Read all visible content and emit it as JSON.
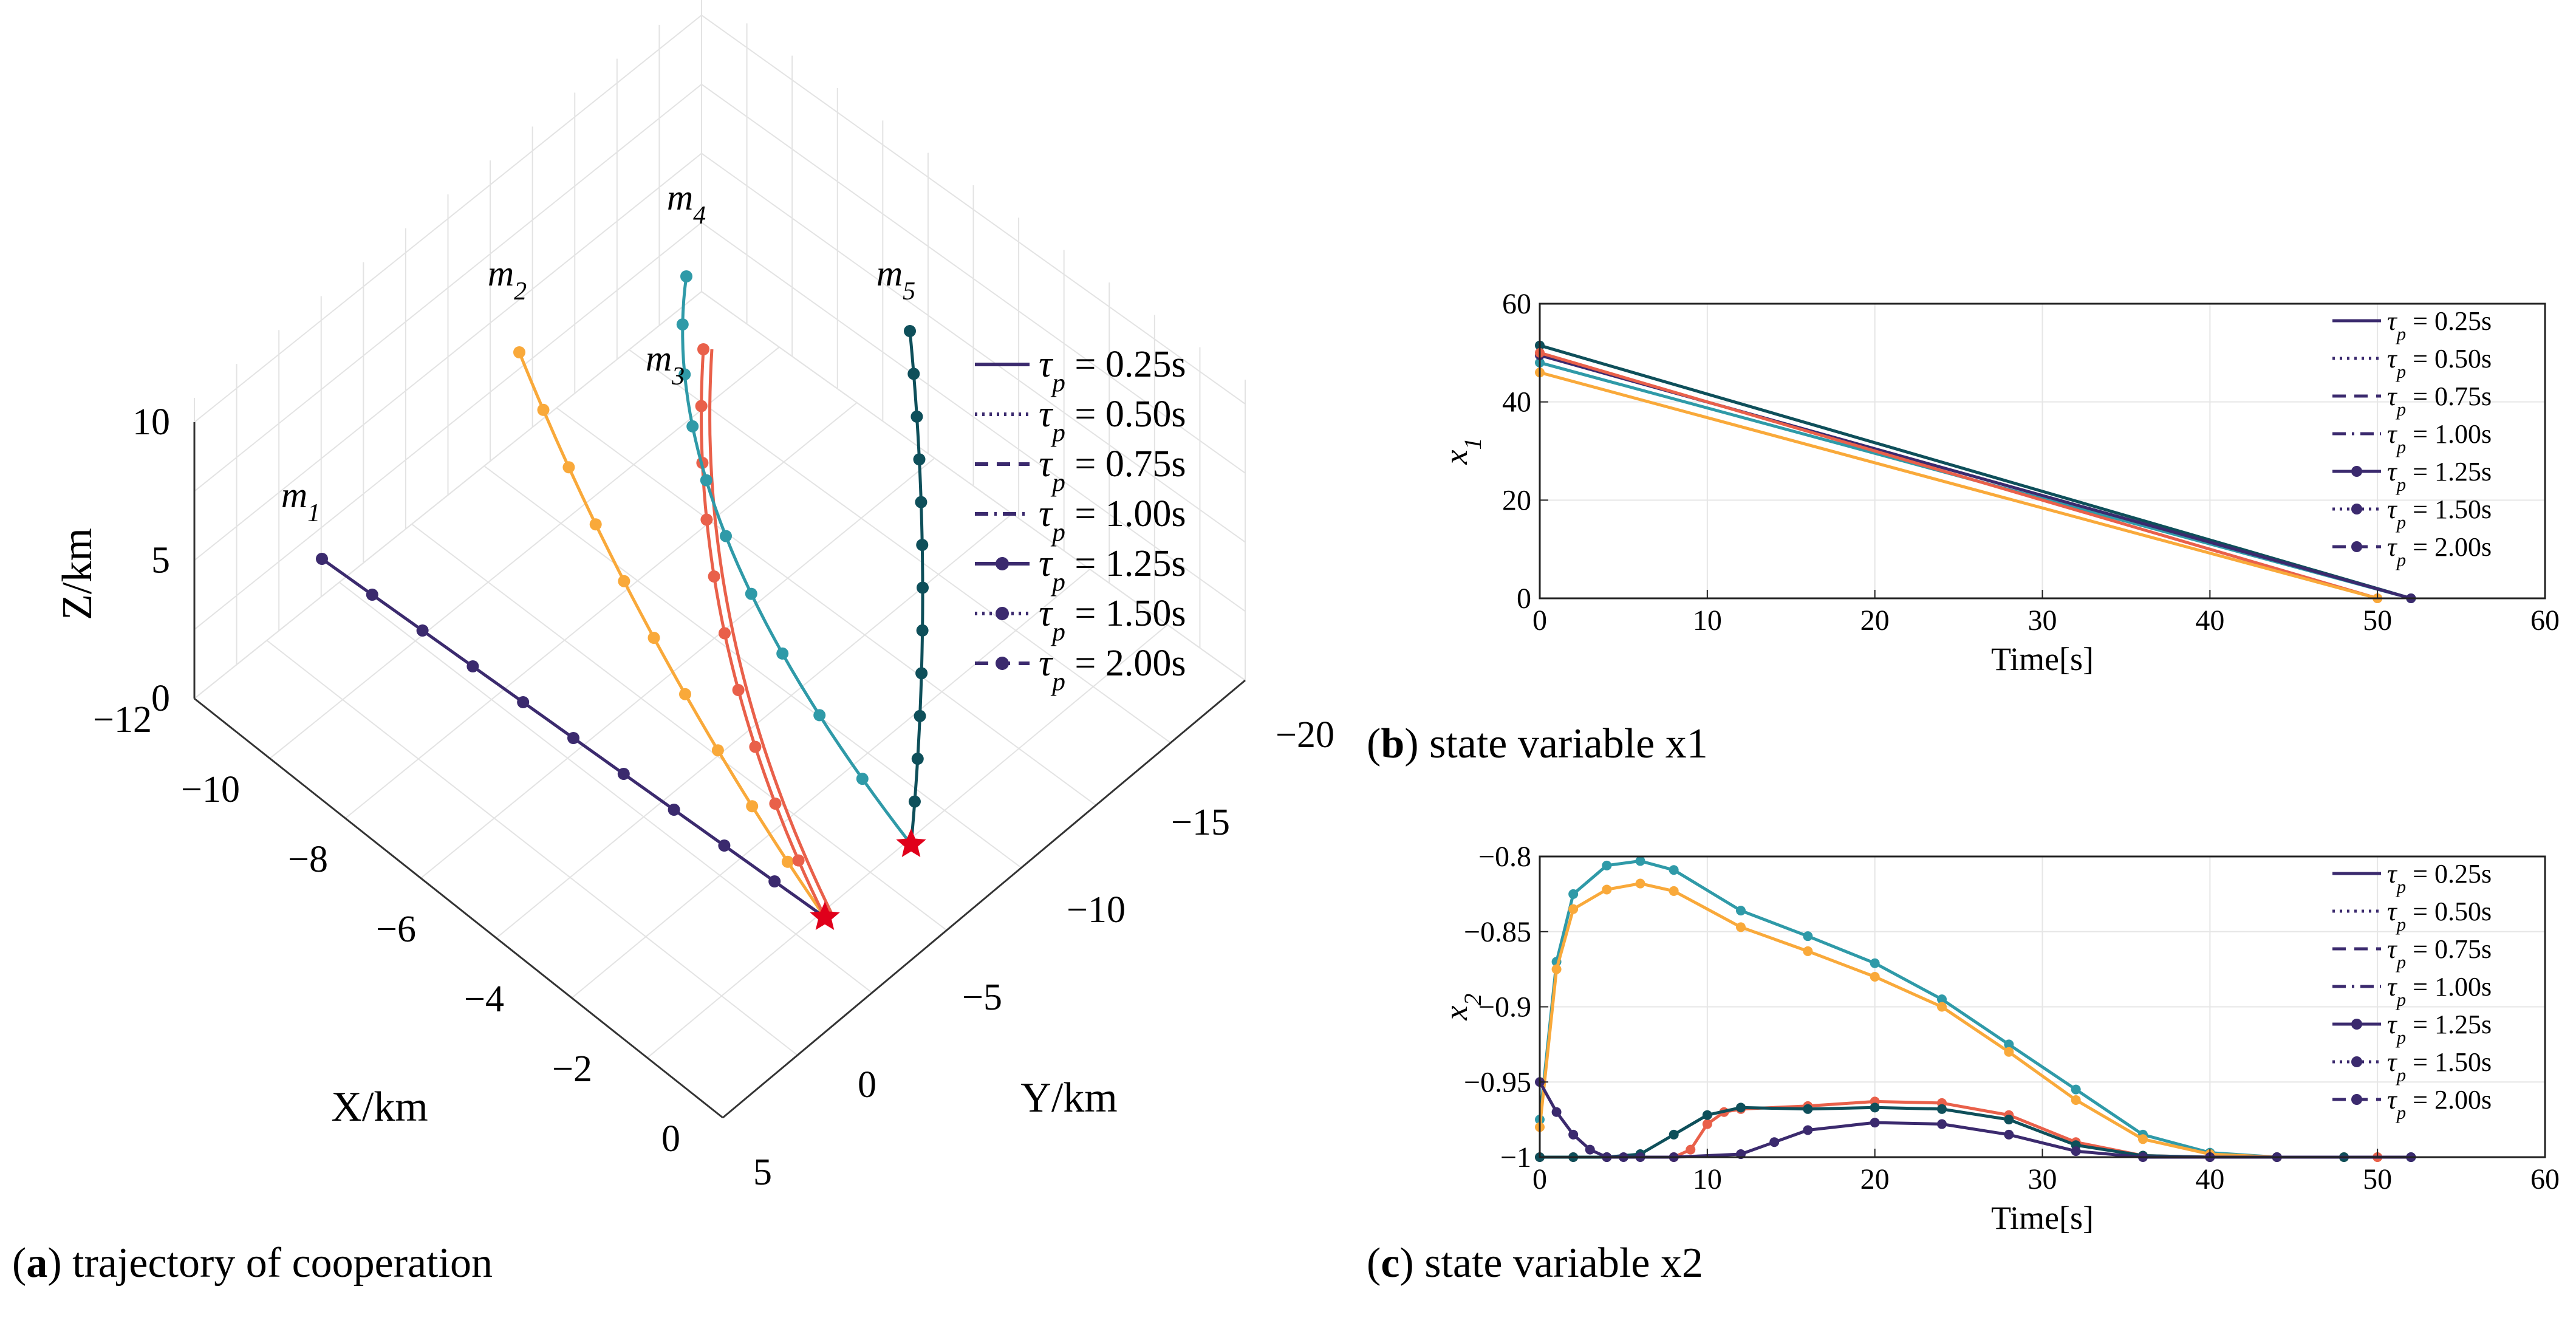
{
  "chart_data": [
    {
      "id": "a",
      "type": "line3d",
      "caption_letter": "a",
      "caption_text": "trajectory of cooperation",
      "xlabel": "X/km",
      "ylabel": "Y/km",
      "zlabel": "Z/km",
      "xticks": [
        "−12",
        "−10",
        "−8",
        "−6",
        "−4",
        "−2",
        "0"
      ],
      "yticks": [
        "5",
        "0",
        "−5",
        "−10",
        "−15",
        "−20"
      ],
      "zticks": [
        "0",
        "5",
        "10"
      ],
      "grid": true,
      "legend_position": "right",
      "legend": [
        "τp = 0.25s",
        "τp = 0.50s",
        "τp = 0.75s",
        "τp = 1.00s",
        "τp = 1.25s",
        "τp = 1.50s",
        "τp = 2.00s"
      ],
      "series_labels": [
        "m1",
        "m2",
        "m3",
        "m4",
        "m5"
      ],
      "colors": [
        "#3b2a6e",
        "#f9a93a",
        "#e9604a",
        "#2f9aa8",
        "#0e4f5a"
      ],
      "target_color": "#e0001b"
    },
    {
      "id": "b",
      "type": "line",
      "caption_letter": "b",
      "caption_text": "state variable x1",
      "xlabel": "Time[s]",
      "ylabel": "x1",
      "xlim": [
        0,
        60
      ],
      "ylim": [
        0,
        60
      ],
      "xticks": [
        0,
        10,
        20,
        30,
        40,
        50,
        60
      ],
      "yticks": [
        0,
        20,
        40,
        60
      ],
      "grid": true,
      "legend_position": "top-right",
      "legend": [
        "τp = 0.25s",
        "τp = 0.50s",
        "τp = 0.75s",
        "τp = 1.00s",
        "τp = 1.25s",
        "τp = 1.50s",
        "τp = 2.00s"
      ],
      "series": [
        {
          "color": "#0e4f5a",
          "x": [
            0,
            52
          ],
          "y": [
            51.5,
            0
          ]
        },
        {
          "color": "#2f9aa8",
          "x": [
            0,
            52
          ],
          "y": [
            48,
            0
          ]
        },
        {
          "color": "#3b2a6e",
          "x": [
            0,
            52
          ],
          "y": [
            49.5,
            0
          ]
        },
        {
          "color": "#e9604a",
          "x": [
            0,
            50
          ],
          "y": [
            50,
            0
          ]
        },
        {
          "color": "#f9a93a",
          "x": [
            0,
            50
          ],
          "y": [
            46,
            0
          ]
        }
      ]
    },
    {
      "id": "c",
      "type": "line",
      "caption_letter": "c",
      "caption_text": "state variable x2",
      "xlabel": "Time[s]",
      "ylabel": "x2",
      "xlim": [
        0,
        60
      ],
      "ylim": [
        -1,
        -0.8
      ],
      "xticks": [
        0,
        10,
        20,
        30,
        40,
        50,
        60
      ],
      "yticks": [
        -1,
        -0.95,
        -0.9,
        -0.85,
        -0.8
      ],
      "grid": true,
      "legend_position": "top-right",
      "legend": [
        "τp = 0.25s",
        "τp = 0.50s",
        "τp = 0.75s",
        "τp = 1.00s",
        "τp = 1.25s",
        "τp = 1.50s",
        "τp = 2.00s"
      ],
      "series": [
        {
          "color": "#2f9aa8",
          "x": [
            0,
            1,
            2,
            4,
            6,
            8,
            12,
            16,
            20,
            24,
            28,
            32,
            36,
            40,
            44,
            48,
            52
          ],
          "y": [
            -0.975,
            -0.87,
            -0.825,
            -0.806,
            -0.803,
            -0.809,
            -0.836,
            -0.853,
            -0.871,
            -0.895,
            -0.925,
            -0.955,
            -0.985,
            -0.997,
            -1,
            -1,
            -1
          ]
        },
        {
          "color": "#f9a93a",
          "x": [
            0,
            1,
            2,
            4,
            6,
            8,
            12,
            16,
            20,
            24,
            28,
            32,
            36,
            40,
            44,
            48,
            50
          ],
          "y": [
            -0.98,
            -0.875,
            -0.835,
            -0.822,
            -0.818,
            -0.823,
            -0.847,
            -0.863,
            -0.88,
            -0.9,
            -0.93,
            -0.962,
            -0.988,
            -0.998,
            -1,
            -1,
            -1
          ]
        },
        {
          "color": "#e9604a",
          "x": [
            0,
            2,
            4,
            8,
            9,
            10,
            11,
            12,
            16,
            20,
            24,
            28,
            32,
            36,
            40,
            44,
            50
          ],
          "y": [
            -1,
            -1,
            -1,
            -1,
            -0.995,
            -0.978,
            -0.97,
            -0.968,
            -0.966,
            -0.963,
            -0.964,
            -0.972,
            -0.99,
            -0.999,
            -1,
            -1,
            -1
          ]
        },
        {
          "color": "#0e4f5a",
          "x": [
            0,
            2,
            4,
            6,
            8,
            10,
            12,
            16,
            20,
            24,
            28,
            32,
            36,
            40,
            44,
            48,
            52
          ],
          "y": [
            -1,
            -1,
            -1,
            -0.998,
            -0.985,
            -0.972,
            -0.967,
            -0.968,
            -0.967,
            -0.968,
            -0.975,
            -0.992,
            -0.999,
            -1,
            -1,
            -1,
            -1
          ]
        },
        {
          "color": "#3b2a6e",
          "x": [
            0,
            1,
            2,
            3,
            4,
            5,
            6,
            8,
            12,
            14,
            16,
            20,
            24,
            28,
            32,
            36,
            40,
            44,
            52
          ],
          "y": [
            -0.95,
            -0.97,
            -0.985,
            -0.995,
            -1,
            -1,
            -1,
            -1,
            -0.998,
            -0.99,
            -0.982,
            -0.977,
            -0.978,
            -0.985,
            -0.996,
            -1,
            -1,
            -1,
            -1
          ]
        }
      ]
    }
  ]
}
